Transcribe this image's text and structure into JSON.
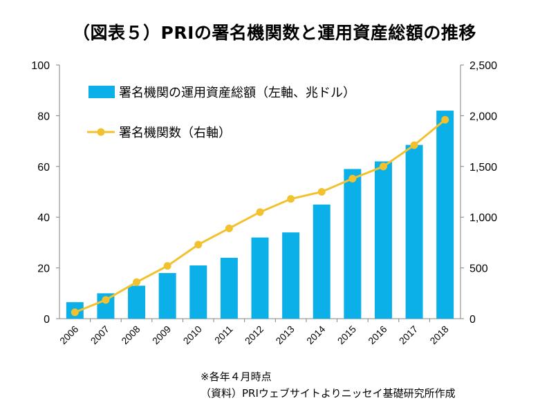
{
  "title": "（図表５）PRIの署名機関数と運用資産総額の推移",
  "chart_data": {
    "type": "bar",
    "categories": [
      "2006",
      "2007",
      "2008",
      "2009",
      "2010",
      "2011",
      "2012",
      "2013",
      "2014",
      "2015",
      "2016",
      "2017",
      "2018"
    ],
    "series": [
      {
        "name": "署名機関の運用資産総額（左軸、兆ドル）",
        "type": "bar",
        "axis": "left",
        "color": "#0BB0E8",
        "values": [
          6.5,
          10,
          13,
          18,
          21,
          24,
          32,
          34,
          45,
          59,
          62,
          68.5,
          82
        ]
      },
      {
        "name": "署名機関数（右軸）",
        "type": "line",
        "axis": "right",
        "color": "#F2C12E",
        "values": [
          63,
          185,
          360,
          520,
          730,
          890,
          1050,
          1180,
          1250,
          1380,
          1500,
          1710,
          1960
        ]
      }
    ],
    "y_left": {
      "min": 0,
      "max": 100,
      "ticks": [
        "0",
        "20",
        "40",
        "60",
        "80",
        "100"
      ]
    },
    "y_right": {
      "min": 0,
      "max": 2500,
      "ticks": [
        "0",
        "500",
        "1,000",
        "1,500",
        "2,000",
        "2,500"
      ]
    },
    "grid": false,
    "legend_position": "top-left"
  },
  "footnotes": [
    "※各年４月時点",
    "（資料）PRIウェブサイトよりニッセイ基礎研究所作成"
  ]
}
